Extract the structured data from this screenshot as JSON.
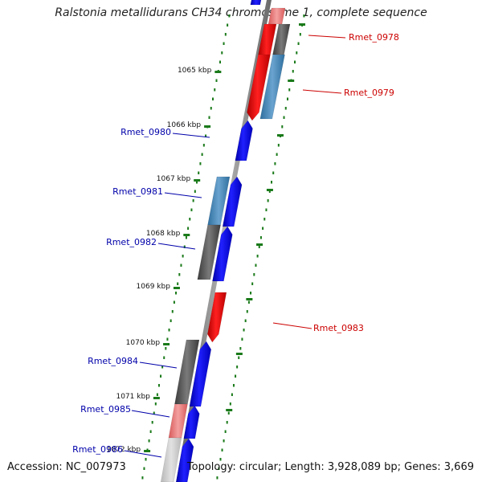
{
  "title": "Ralstonia metallidurans CH34 chromosome 1, complete sequence",
  "footer": {
    "accession": "Accession: NC_007973",
    "summary": "Topology: circular; Length: 3,928,089 bp; Genes: 3,669"
  },
  "colors": {
    "forward_strand": "#0000ee",
    "reverse_strand": "#ee0000",
    "label_forward": "#0000aa",
    "label_reverse": "#cc0000",
    "ticks": "#1a7a1a",
    "backbone": "#8a8a8a"
  },
  "scale_labels": [
    "1065 kbp",
    "1066 kbp",
    "1067 kbp",
    "1068 kbp",
    "1069 kbp",
    "1070 kbp",
    "1071 kbp",
    "1072 kbp"
  ],
  "genes": [
    {
      "label": "Rmet_0978",
      "strand": "reverse"
    },
    {
      "label": "Rmet_0979",
      "strand": "reverse"
    },
    {
      "label": "Rmet_0980",
      "strand": "forward"
    },
    {
      "label": "Rmet_0981",
      "strand": "forward"
    },
    {
      "label": "Rmet_0982",
      "strand": "forward"
    },
    {
      "label": "Rmet_0983",
      "strand": "reverse"
    },
    {
      "label": "Rmet_0984",
      "strand": "forward"
    },
    {
      "label": "Rmet_0985",
      "strand": "forward"
    },
    {
      "label": "Rmet_0986",
      "strand": "forward"
    }
  ]
}
